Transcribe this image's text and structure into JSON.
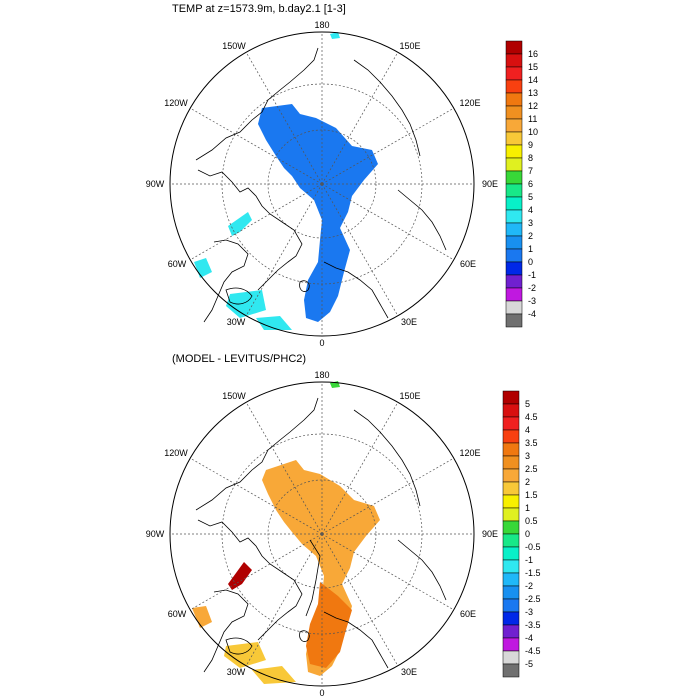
{
  "panels": [
    {
      "id": "top",
      "title": "TEMP at z=1573.9m, b.day2.1 [1-3]",
      "fill_color": "#1a78f0",
      "lon_labels": [
        "180",
        "150E",
        "120E",
        "90E",
        "60E",
        "30E",
        "0",
        "30W",
        "60W",
        "90W",
        "120W",
        "150W"
      ],
      "colorbar": {
        "labels": [
          "16",
          "15",
          "14",
          "13",
          "12",
          "11",
          "10",
          "9",
          "8",
          "7",
          "6",
          "5",
          "4",
          "3",
          "2",
          "1",
          "0",
          "-1",
          "-2",
          "-3",
          "-4"
        ],
        "colors": [
          "#b00000",
          "#d81010",
          "#f02020",
          "#f84010",
          "#f07810",
          "#f09020",
          "#f8a838",
          "#f8c838",
          "#f8f000",
          "#e0f020",
          "#38d838",
          "#18e888",
          "#08f0c8",
          "#30e8f0",
          "#20b8f8",
          "#1890f0",
          "#1a78f0",
          "#0028e8",
          "#7020d0",
          "#c018e0",
          "#d8d8d8",
          "#707070"
        ]
      }
    },
    {
      "id": "bottom",
      "title": "(MODEL - LEVITUS/PHC2)",
      "fill_color": "#f8a838",
      "lon_labels": [
        "180",
        "150E",
        "120E",
        "90E",
        "60E",
        "30E",
        "0",
        "30W",
        "60W",
        "90W",
        "120W",
        "150W"
      ],
      "colorbar": {
        "labels": [
          "5",
          "4.5",
          "4",
          "3.5",
          "3",
          "2.5",
          "2",
          "1.5",
          "1",
          "0.5",
          "0",
          "-0.5",
          "-1",
          "-1.5",
          "-2",
          "-2.5",
          "-3",
          "-3.5",
          "-4",
          "-4.5",
          "-5"
        ],
        "colors": [
          "#b00000",
          "#d81010",
          "#f02020",
          "#f84010",
          "#f07810",
          "#f09020",
          "#f8a838",
          "#f8c838",
          "#f8f000",
          "#e0f020",
          "#38d838",
          "#18e888",
          "#08f0c8",
          "#30e8f0",
          "#20b8f8",
          "#1890f0",
          "#1a78f0",
          "#0028e8",
          "#7020d0",
          "#c018e0",
          "#d8d8d8",
          "#707070"
        ]
      }
    }
  ]
}
